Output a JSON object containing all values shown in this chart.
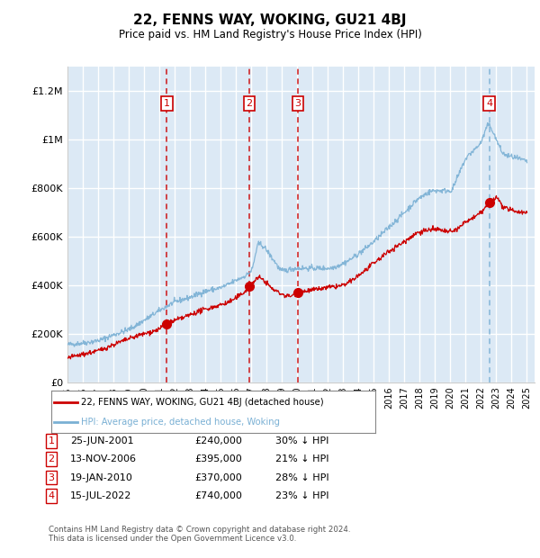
{
  "title": "22, FENNS WAY, WOKING, GU21 4BJ",
  "subtitle": "Price paid vs. HM Land Registry's House Price Index (HPI)",
  "ylabel_ticks": [
    "£0",
    "£200K",
    "£400K",
    "£600K",
    "£800K",
    "£1M",
    "£1.2M"
  ],
  "ytick_values": [
    0,
    200000,
    400000,
    600000,
    800000,
    1000000,
    1200000
  ],
  "ylim": [
    0,
    1300000
  ],
  "xlim_start": 1995.0,
  "xlim_end": 2025.5,
  "plot_bg": "#dce9f5",
  "grid_color": "#ffffff",
  "hpi_color": "#7ab0d4",
  "price_color": "#cc0000",
  "purchases": [
    {
      "date_num": 2001.48,
      "price": 240000,
      "label": "1",
      "vline_color": "#cc0000",
      "vline_style": "dashed"
    },
    {
      "date_num": 2006.87,
      "price": 395000,
      "label": "2",
      "vline_color": "#cc0000",
      "vline_style": "dashed"
    },
    {
      "date_num": 2010.05,
      "price": 370000,
      "label": "3",
      "vline_color": "#cc0000",
      "vline_style": "dashed"
    },
    {
      "date_num": 2022.54,
      "price": 740000,
      "label": "4",
      "vline_color": "#7ab0d4",
      "vline_style": "dashed"
    }
  ],
  "purchase_notes": [
    {
      "label": "1",
      "date": "25-JUN-2001",
      "price": "£240,000",
      "note": "30% ↓ HPI"
    },
    {
      "label": "2",
      "date": "13-NOV-2006",
      "price": "£395,000",
      "note": "21% ↓ HPI"
    },
    {
      "label": "3",
      "date": "19-JAN-2010",
      "price": "£370,000",
      "note": "28% ↓ HPI"
    },
    {
      "label": "4",
      "date": "15-JUL-2022",
      "price": "£740,000",
      "note": "23% ↓ HPI"
    }
  ],
  "legend_entry1": "22, FENNS WAY, WOKING, GU21 4BJ (detached house)",
  "legend_entry2": "HPI: Average price, detached house, Woking",
  "footnote": "Contains HM Land Registry data © Crown copyright and database right 2024.\nThis data is licensed under the Open Government Licence v3.0.",
  "hpi_anchors_x": [
    1995.0,
    1996.0,
    1997.0,
    1998.0,
    1999.0,
    2000.0,
    2001.0,
    2002.0,
    2003.0,
    2004.0,
    2005.0,
    2006.0,
    2007.0,
    2007.5,
    2008.5,
    2009.0,
    2010.0,
    2011.0,
    2012.0,
    2013.0,
    2014.0,
    2015.0,
    2016.0,
    2017.0,
    2018.0,
    2019.0,
    2020.0,
    2020.5,
    2021.0,
    2022.0,
    2022.5,
    2023.0,
    2023.5,
    2024.0,
    2025.0
  ],
  "hpi_anchors_y": [
    155000,
    162000,
    172000,
    195000,
    218000,
    255000,
    295000,
    330000,
    350000,
    375000,
    390000,
    420000,
    460000,
    570000,
    500000,
    460000,
    470000,
    470000,
    470000,
    490000,
    530000,
    580000,
    640000,
    700000,
    760000,
    790000,
    790000,
    850000,
    920000,
    990000,
    1060000,
    1000000,
    940000,
    930000,
    910000
  ],
  "price_anchors_x": [
    1995.0,
    1996.0,
    1997.0,
    1998.0,
    1999.5,
    2001.0,
    2001.48,
    2002.5,
    2003.5,
    2004.5,
    2005.5,
    2006.5,
    2006.87,
    2007.5,
    2008.5,
    2009.5,
    2010.05,
    2011.0,
    2012.0,
    2013.0,
    2014.0,
    2015.0,
    2016.0,
    2017.0,
    2018.0,
    2019.0,
    2020.0,
    2021.0,
    2022.0,
    2022.54,
    2023.0,
    2023.5,
    2024.0,
    2025.0
  ],
  "price_anchors_y": [
    100000,
    115000,
    130000,
    155000,
    190000,
    220000,
    240000,
    265000,
    290000,
    310000,
    330000,
    370000,
    395000,
    430000,
    380000,
    355000,
    370000,
    380000,
    390000,
    400000,
    440000,
    490000,
    540000,
    580000,
    620000,
    630000,
    620000,
    660000,
    700000,
    740000,
    760000,
    720000,
    710000,
    700000
  ]
}
